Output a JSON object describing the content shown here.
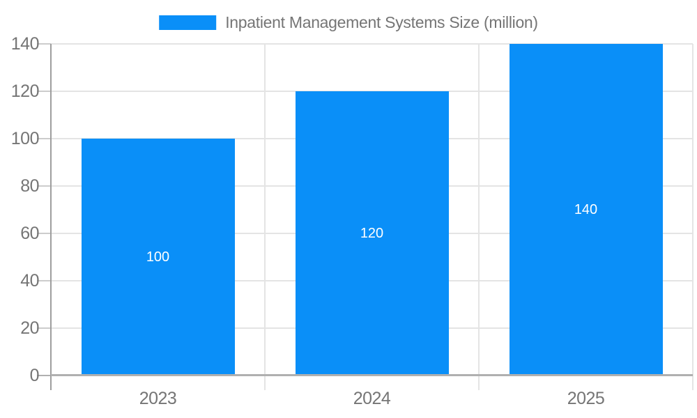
{
  "chart_data": {
    "type": "bar",
    "title": "",
    "legend": "Inpatient Management Systems Size (million)",
    "legend_position": "top-center",
    "categories": [
      "2023",
      "2024",
      "2025"
    ],
    "series": [
      {
        "name": "Inpatient Management Systems Size (million)",
        "values": [
          100,
          120,
          140
        ]
      }
    ],
    "value_labels": [
      "100",
      "120",
      "140"
    ],
    "xlabel": "",
    "ylabel": "",
    "ylim": [
      0,
      140
    ],
    "yticks": [
      0,
      20,
      40,
      60,
      80,
      100,
      120,
      140
    ],
    "grid": true,
    "colors": {
      "bar": "#0A8FF8",
      "value_label": "#FFFFFF",
      "gridline": "#E4E4E4",
      "tick_mark": "#CCCCCC",
      "axis_line": "#9E9E9E",
      "baseline": "#B0B0B0",
      "tick_label": "#757575",
      "background": "#FFFFFF"
    }
  }
}
